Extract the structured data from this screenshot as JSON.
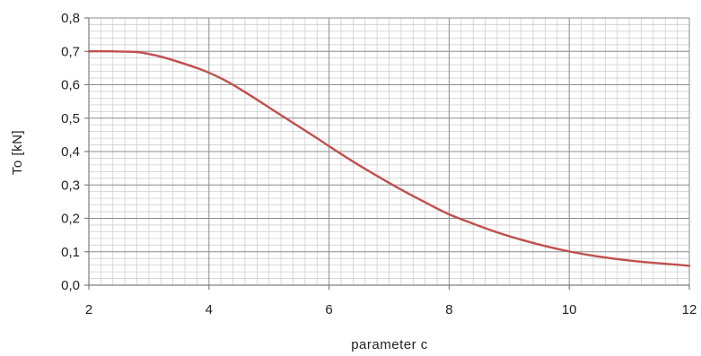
{
  "chart_data": {
    "type": "line",
    "title": "",
    "xlabel": "parameter  c",
    "ylabel": "To  [kN]",
    "xlim": [
      2,
      12
    ],
    "ylim": [
      0,
      0.8
    ],
    "x_ticks": [
      2,
      4,
      6,
      8,
      10,
      12
    ],
    "x_tick_labels": [
      "2",
      "4",
      "6",
      "8",
      "10",
      "12"
    ],
    "y_ticks": [
      0,
      0.1,
      0.2,
      0.3,
      0.4,
      0.5,
      0.6,
      0.7,
      0.8
    ],
    "y_tick_labels": [
      "0,0",
      "0,1",
      "0,2",
      "0,3",
      "0,4",
      "0,5",
      "0,6",
      "0,7",
      "0,8"
    ],
    "grid": true,
    "legend": "none",
    "series": [
      {
        "color": "#c0504d",
        "x": [
          2.0,
          2.4,
          2.8,
          3.0,
          3.2,
          3.5,
          3.8,
          4.0,
          4.3,
          4.6,
          5.0,
          5.4,
          5.8,
          6.0,
          6.4,
          6.8,
          7.2,
          7.6,
          8.0,
          8.4,
          8.8,
          9.2,
          9.6,
          10.0,
          10.4,
          10.8,
          11.2,
          11.6,
          12.0
        ],
        "y": [
          0.7,
          0.7,
          0.698,
          0.692,
          0.684,
          0.668,
          0.65,
          0.636,
          0.61,
          0.578,
          0.532,
          0.486,
          0.44,
          0.416,
          0.37,
          0.327,
          0.286,
          0.248,
          0.212,
          0.184,
          0.158,
          0.136,
          0.117,
          0.101,
          0.088,
          0.078,
          0.07,
          0.064,
          0.058
        ]
      }
    ]
  }
}
